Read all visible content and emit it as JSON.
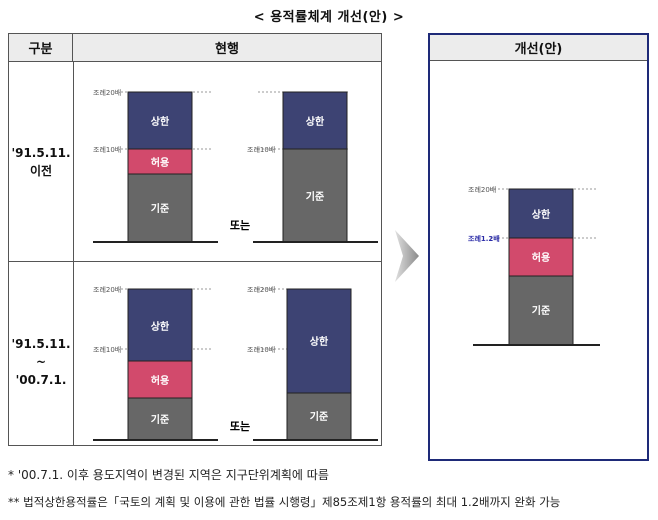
{
  "title": "< 용적률체계 개선(안) >",
  "table": {
    "col_gubun": "구분",
    "col_current": "현행",
    "rows": [
      {
        "period_line1": "'91.5.11.",
        "period_line2": "이전"
      },
      {
        "period_line1": "'91.5.11.",
        "period_line2": "~",
        "period_line3": "'00.7.1."
      }
    ]
  },
  "improved": {
    "header": "개선(안)"
  },
  "labels": {
    "upper": "상한",
    "allowed": "허용",
    "base": "기준",
    "or": "또는",
    "ord_20x": "조례20배",
    "ord_10x": "조례10배",
    "ord_12x": "조례1.2배"
  },
  "colors": {
    "upper": "#3d4373",
    "allowed": "#d24a6c",
    "base": "#676767",
    "highlight_label": "#2b2ca8",
    "panel_border": "#1e2a78"
  },
  "notes": {
    "note1": "* '00.7.1. 이후 용도지역이 변경된 지역은 지구단위계획에 따름",
    "note2": "** 법적상한용적률은「국토의 계획 및 이용에 관한 법률 시행령」제85조제1항 용적률의 최대 1.2배까지 완화 가능"
  }
}
